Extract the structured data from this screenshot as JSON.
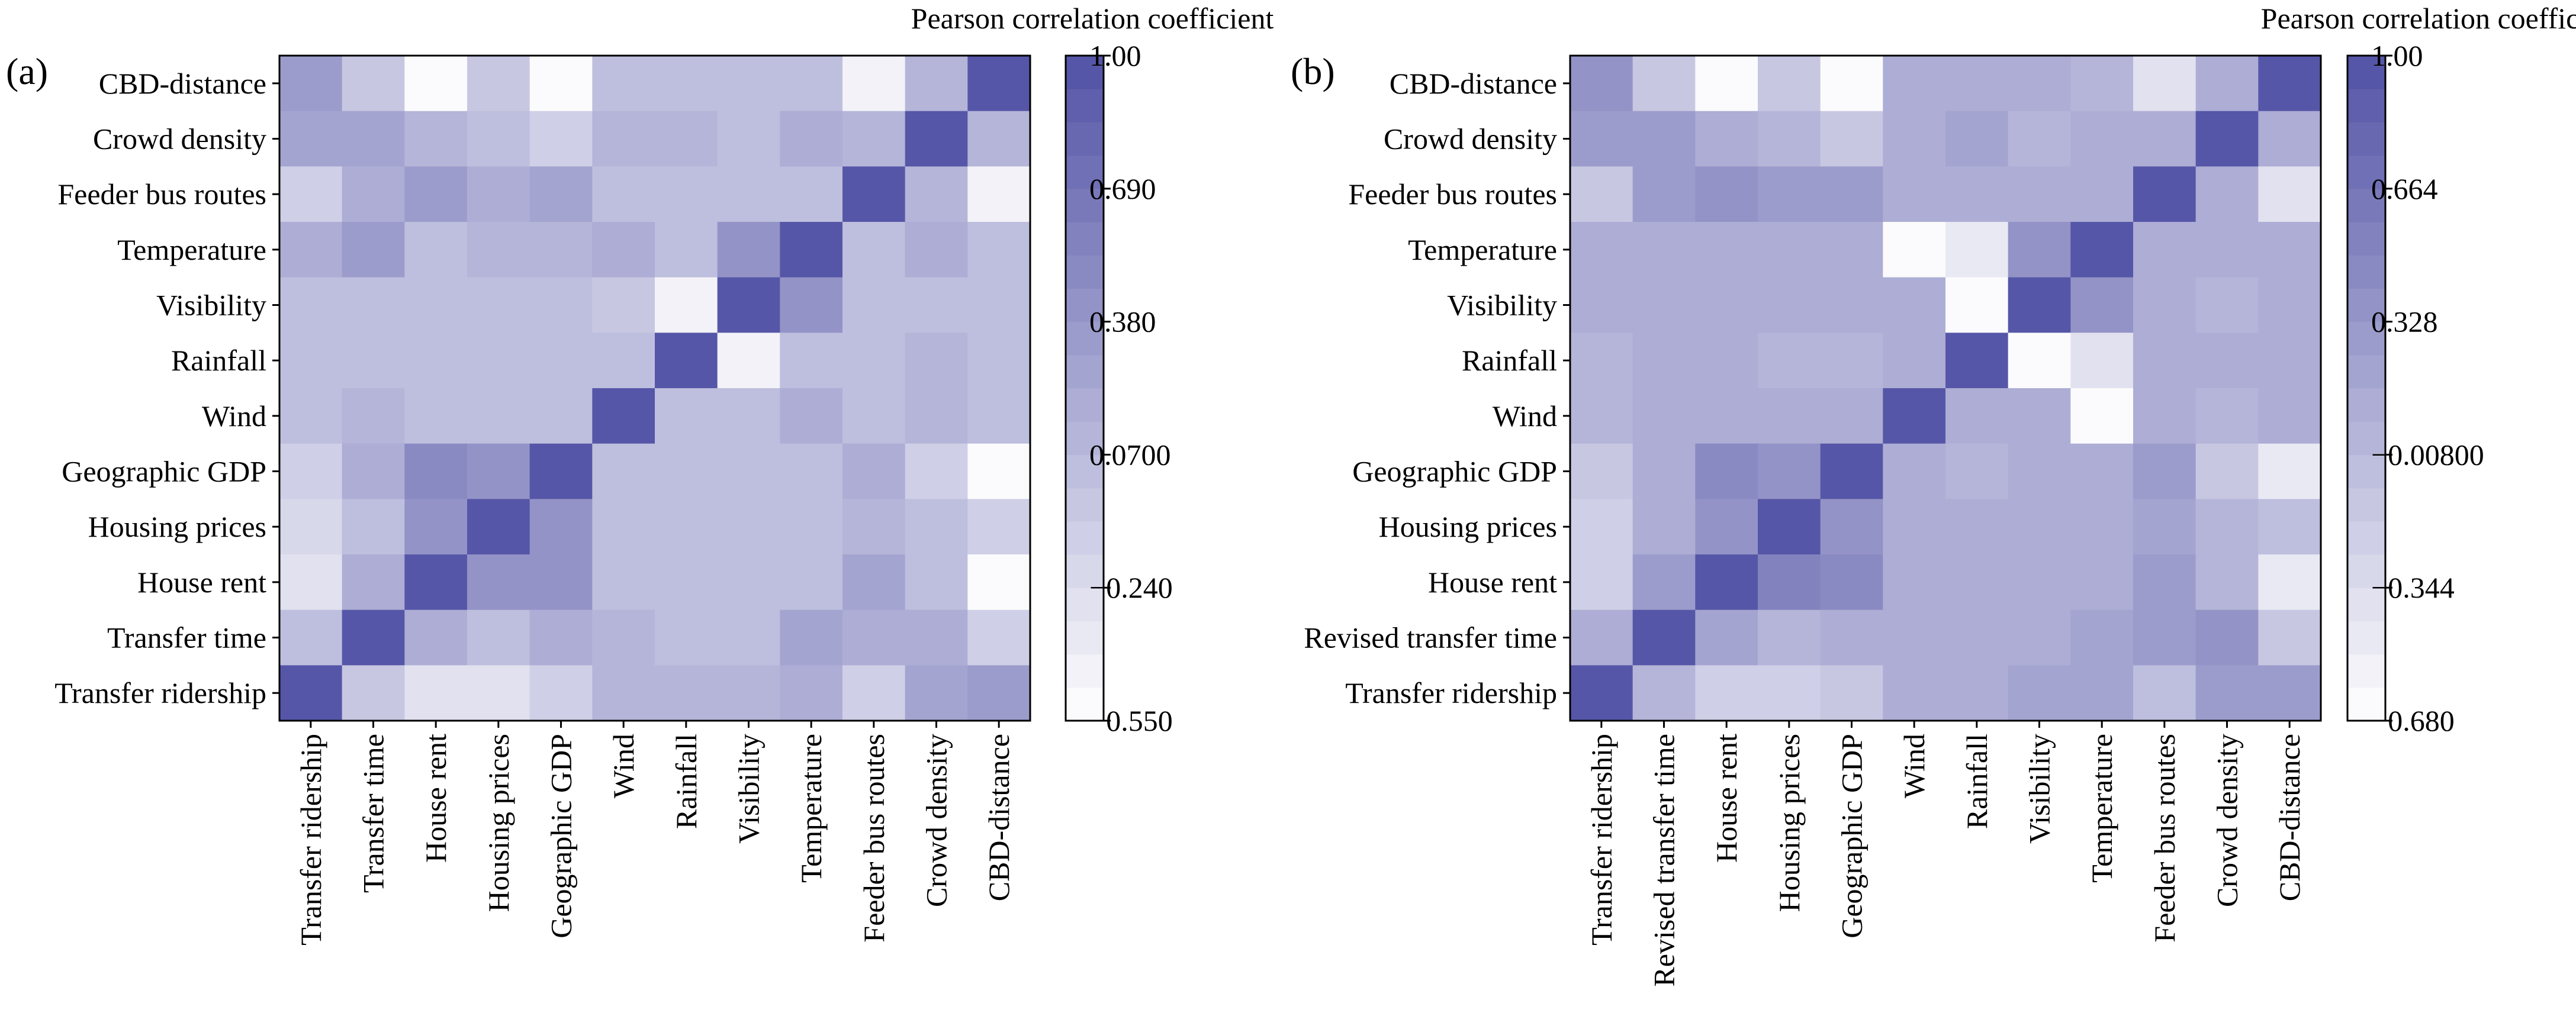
{
  "chart_data": [
    {
      "type": "heatmap",
      "panel_label": "(a)",
      "colorbar_label": "Pearson correlation coefficient",
      "colorbar_ticks": [
        "1.00",
        "0.690",
        "0.380",
        "0.0700",
        "−0.240",
        "−0.550"
      ],
      "colorbar_tick_values": [
        1.0,
        0.69,
        0.38,
        0.07,
        -0.24,
        -0.55
      ],
      "vmin": -0.55,
      "vmax": 1.0,
      "colorbar_levels": 20,
      "colors": {
        "low": "#ffffff",
        "high": "#5252a6"
      },
      "rows_top_to_bottom": [
        "CBD-distance",
        "Crowd density",
        "Feeder bus routes",
        "Temperature",
        "Visibility",
        "Rainfall",
        "Wind",
        "Geographic GDP",
        "Housing prices",
        "House rent",
        "Transfer time",
        "Transfer ridership"
      ],
      "columns": [
        "Transfer ridership",
        "Transfer time",
        "House rent",
        "Housing prices",
        "Geographic GDP",
        "Wind",
        "Rainfall",
        "Visibility",
        "Temperature",
        "Feeder bus routes",
        "Crowd density",
        "CBD-distance"
      ],
      "values": [
        [
          0.35,
          -0.05,
          -0.53,
          -0.07,
          -0.55,
          0.02,
          0.02,
          0.02,
          0.02,
          -0.45,
          0.12,
          1.0
        ],
        [
          0.25,
          0.25,
          0.1,
          0.0,
          -0.15,
          0.12,
          0.12,
          0.0,
          0.2,
          0.1,
          1.0,
          0.12
        ],
        [
          -0.1,
          0.2,
          0.35,
          0.15,
          0.25,
          0.05,
          0.05,
          0.05,
          0.05,
          1.0,
          0.1,
          -0.45
        ],
        [
          0.15,
          0.35,
          0.05,
          0.08,
          0.08,
          0.2,
          0.0,
          0.4,
          1.0,
          0.05,
          0.18,
          0.05
        ],
        [
          0.05,
          0.05,
          0.05,
          0.05,
          0.05,
          -0.05,
          -0.4,
          1.0,
          0.4,
          0.05,
          0.0,
          0.05
        ],
        [
          0.05,
          0.05,
          0.05,
          0.05,
          0.05,
          0.0,
          1.0,
          -0.4,
          0.0,
          0.05,
          0.07,
          0.05
        ],
        [
          0.05,
          0.1,
          0.05,
          0.05,
          0.05,
          1.0,
          0.02,
          0.0,
          0.2,
          0.05,
          0.1,
          0.05
        ],
        [
          -0.15,
          0.2,
          0.5,
          0.45,
          1.0,
          0.05,
          0.05,
          0.05,
          0.05,
          0.2,
          -0.15,
          -0.55
        ],
        [
          -0.2,
          0.05,
          0.45,
          1.0,
          0.4,
          0.05,
          0.05,
          0.05,
          0.05,
          0.1,
          0.05,
          -0.1
        ],
        [
          -0.25,
          0.2,
          1.0,
          0.45,
          0.45,
          0.05,
          0.05,
          0.05,
          0.05,
          0.3,
          0.05,
          -0.55
        ],
        [
          0.0,
          1.0,
          0.15,
          0.0,
          0.15,
          0.1,
          0.05,
          0.05,
          0.3,
          0.15,
          0.2,
          -0.1
        ],
        [
          1.0,
          -0.05,
          -0.3,
          -0.25,
          -0.15,
          0.1,
          0.1,
          0.1,
          0.15,
          -0.1,
          0.25,
          0.35
        ]
      ]
    },
    {
      "type": "heatmap",
      "panel_label": "(b)",
      "colorbar_label": "Pearson correlation coefficient",
      "colorbar_ticks": [
        "1.00",
        "0.664",
        "0.328",
        "−0.00800",
        "−0.344",
        "−0.680"
      ],
      "colorbar_tick_values": [
        1.0,
        0.664,
        0.328,
        -0.008,
        -0.344,
        -0.68
      ],
      "vmin": -0.68,
      "vmax": 1.0,
      "colorbar_levels": 20,
      "colors": {
        "low": "#ffffff",
        "high": "#5252a6"
      },
      "rows_top_to_bottom": [
        "CBD-distance",
        "Crowd density",
        "Feeder bus routes",
        "Temperature",
        "Visibility",
        "Rainfall",
        "Wind",
        "Geographic GDP",
        "Housing prices",
        "House rent",
        "Revised transfer time",
        "Transfer ridership"
      ],
      "columns": [
        "Transfer ridership",
        "Revised transfer time",
        "House rent",
        "Housing prices",
        "Geographic GDP",
        "Wind",
        "Rainfall",
        "Visibility",
        "Temperature",
        "Feeder bus routes",
        "Crowd density",
        "CBD-distance"
      ],
      "values": [
        [
          0.35,
          -0.1,
          -0.6,
          -0.1,
          -0.6,
          0.1,
          0.1,
          0.1,
          0.05,
          -0.4,
          0.12,
          1.0
        ],
        [
          0.3,
          0.3,
          0.12,
          0.05,
          -0.15,
          0.1,
          0.2,
          0.0,
          0.15,
          0.15,
          1.0,
          0.12
        ],
        [
          -0.1,
          0.3,
          0.35,
          0.25,
          0.3,
          0.1,
          0.1,
          0.1,
          0.1,
          1.0,
          0.15,
          -0.4
        ],
        [
          0.15,
          0.15,
          0.1,
          0.1,
          0.1,
          -0.68,
          -0.5,
          0.35,
          1.0,
          0.1,
          0.1,
          0.1
        ],
        [
          0.15,
          0.1,
          0.1,
          0.1,
          0.1,
          0.15,
          -0.68,
          1.0,
          0.35,
          0.1,
          0.0,
          0.1
        ],
        [
          0.05,
          0.1,
          0.1,
          0.05,
          0.05,
          0.15,
          1.0,
          -0.68,
          -0.4,
          0.1,
          0.15,
          0.1
        ],
        [
          0.05,
          0.1,
          0.1,
          0.1,
          0.1,
          1.0,
          0.15,
          0.15,
          -0.68,
          0.1,
          0.05,
          0.1
        ],
        [
          -0.15,
          0.15,
          0.45,
          0.4,
          1.0,
          0.1,
          0.05,
          0.1,
          0.1,
          0.3,
          -0.1,
          -0.5
        ],
        [
          -0.2,
          0.1,
          0.4,
          1.0,
          0.4,
          0.1,
          0.1,
          0.1,
          0.1,
          0.2,
          0.05,
          -0.05
        ],
        [
          -0.25,
          0.25,
          1.0,
          0.5,
          0.45,
          0.1,
          0.1,
          0.1,
          0.1,
          0.3,
          0.05,
          -0.5
        ],
        [
          0.15,
          1.0,
          0.2,
          0.05,
          0.15,
          0.1,
          0.1,
          0.1,
          0.2,
          0.25,
          0.35,
          -0.1
        ],
        [
          1.0,
          0.05,
          -0.25,
          -0.2,
          -0.15,
          0.1,
          0.1,
          0.2,
          0.2,
          -0.05,
          0.3,
          0.3
        ]
      ]
    }
  ]
}
